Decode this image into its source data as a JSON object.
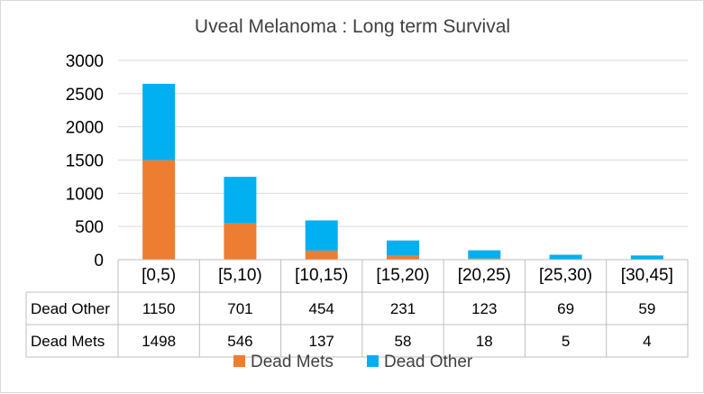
{
  "chart_data": {
    "type": "bar",
    "stacked": true,
    "title": "Uveal Melanoma : Long term Survival",
    "categories": [
      "[0,5)",
      "[5,10)",
      "[10,15)",
      "[15,20)",
      "[20,25)",
      "[25,30)",
      "[30,45]"
    ],
    "series": [
      {
        "name": "Dead Mets",
        "values": [
          1498,
          546,
          137,
          58,
          18,
          5,
          4
        ],
        "color": "#ed7d31"
      },
      {
        "name": "Dead Other",
        "values": [
          1150,
          701,
          454,
          231,
          123,
          69,
          59
        ],
        "color": "#00b0f0"
      }
    ],
    "table_rows": [
      "Dead Other",
      "Dead Mets"
    ],
    "ylim": [
      0,
      3000
    ],
    "yticks": [
      "0",
      "500",
      "1000",
      "1500",
      "2000",
      "2500",
      "3000"
    ],
    "grid": true,
    "legend_position": "bottom",
    "data_table": true
  }
}
